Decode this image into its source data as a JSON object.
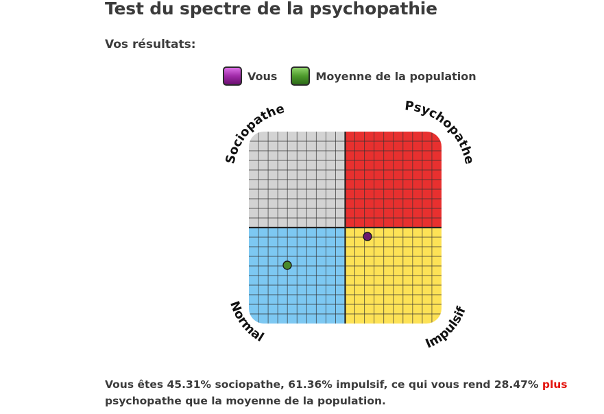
{
  "page": {
    "title": "Test du spectre de la psychopathie",
    "subtitle": "Vos résultats:"
  },
  "legend": {
    "you_label": "Vous",
    "average_label": "Moyenne de la population"
  },
  "chart": {
    "quadrant_labels": {
      "top_left": "Sociopathe",
      "top_right": "Psychopathe",
      "bottom_left": "Normal",
      "bottom_right": "Impulsif"
    },
    "quadrant_colors": {
      "top_left": "#d3d3d3",
      "top_right": "#e8302f",
      "bottom_left": "#7dc8f2",
      "bottom_right": "#fde256"
    },
    "points": {
      "you": {
        "sociopathe_pct": 45.31,
        "impulsif_pct": 61.36,
        "color": "#6a1a6e"
      },
      "average": {
        "color": "#4a8a2a"
      }
    }
  },
  "result": {
    "text_before": "Vous êtes 45.31% sociopathe, 61.36% impulsif, ce qui vous rend 28.47% ",
    "highlight": "plus",
    "text_after": " psychopathe que la moyenne de la population.",
    "highlight_color": "#e3140e"
  }
}
